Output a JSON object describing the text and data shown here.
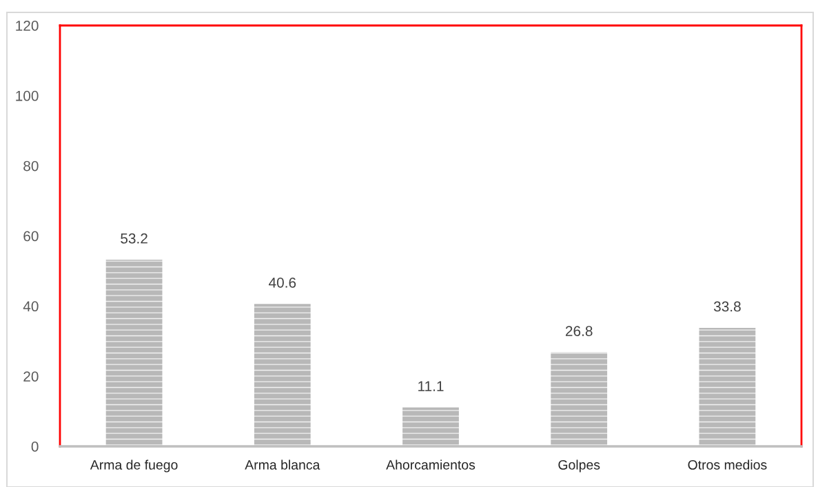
{
  "chart_data": {
    "type": "bar",
    "categories": [
      "Arma de fuego",
      "Arma blanca",
      "Ahorcamientos",
      "Golpes",
      "Otros medios"
    ],
    "values": [
      53.2,
      40.6,
      11.1,
      26.8,
      33.8
    ],
    "color": "#b8b8b8",
    "ylim": [
      0,
      120
    ],
    "yticks": [
      0,
      20,
      40,
      60,
      80,
      100,
      120
    ],
    "grid": false,
    "legend": false,
    "data_labels": true
  }
}
